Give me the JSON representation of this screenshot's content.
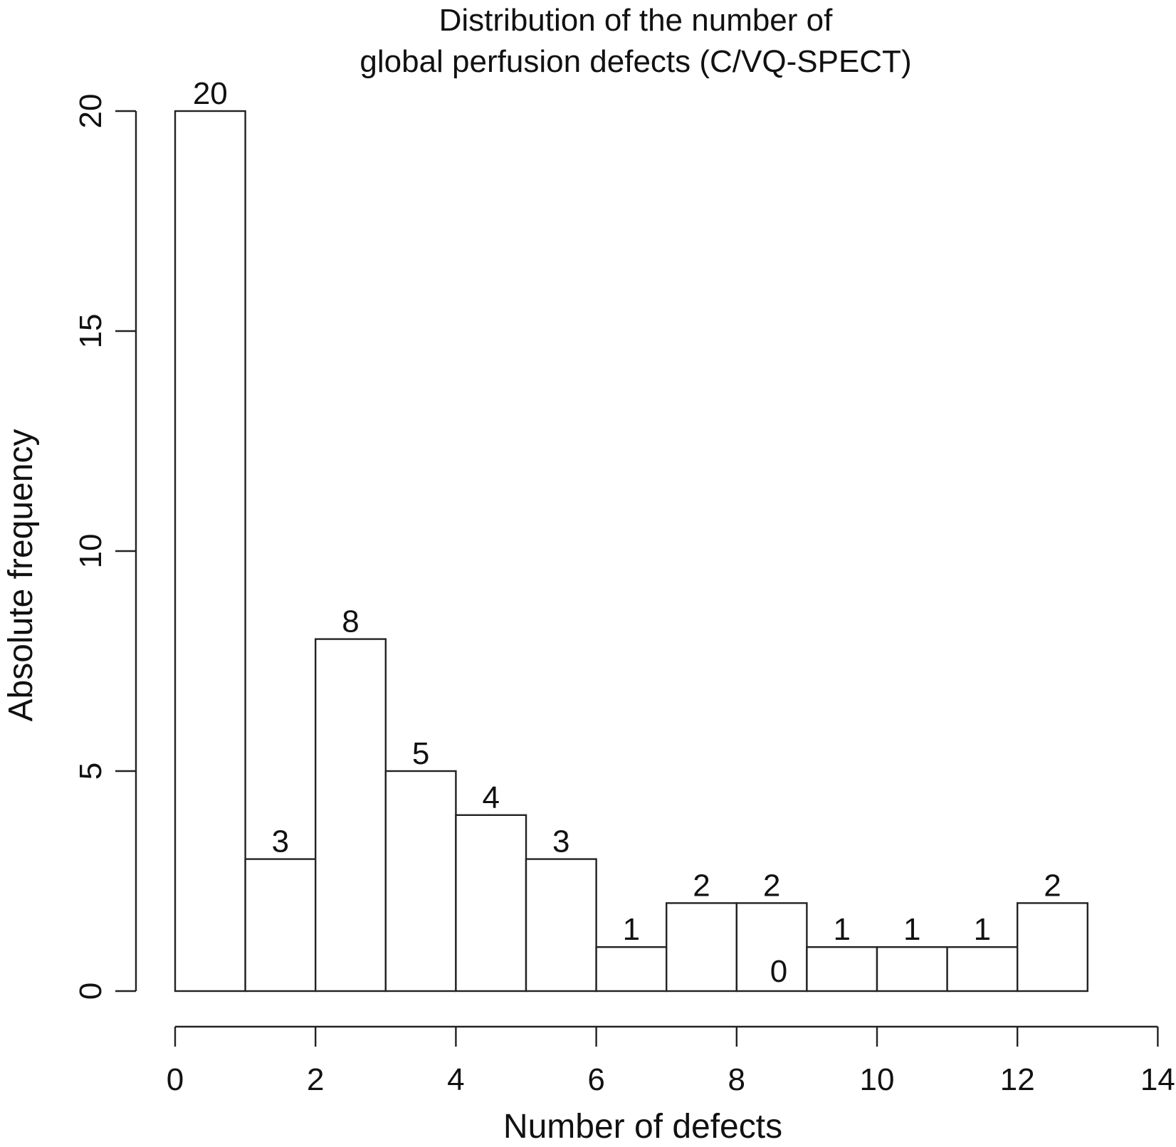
{
  "chart_data": {
    "type": "bar",
    "title": "Distribution of the number of",
    "subtitle": "global perfusion defects (C/VQ-SPECT)",
    "xlabel": "Number of defects",
    "ylabel": "Absolute frequency",
    "bins": [
      {
        "x0": 0,
        "x1": 1,
        "value": 20
      },
      {
        "x0": 1,
        "x1": 2,
        "value": 3
      },
      {
        "x0": 2,
        "x1": 3,
        "value": 8
      },
      {
        "x0": 3,
        "x1": 4,
        "value": 5
      },
      {
        "x0": 4,
        "x1": 5,
        "value": 4
      },
      {
        "x0": 5,
        "x1": 6,
        "value": 3
      },
      {
        "x0": 6,
        "x1": 7,
        "value": 1
      },
      {
        "x0": 7,
        "x1": 8,
        "value": 2
      },
      {
        "x0": 8,
        "x1": 9,
        "value": 2
      },
      {
        "x0": 9,
        "x1": 10,
        "value": 1
      },
      {
        "x0": 10,
        "x1": 11,
        "value": 1
      },
      {
        "x0": 11,
        "x1": 12,
        "value": 1
      },
      {
        "x0": 12,
        "x1": 13,
        "value": 2
      }
    ],
    "extra_labels": [
      {
        "text": "0",
        "x": 8.6,
        "y": 0.5
      }
    ],
    "xlim": [
      0,
      14
    ],
    "ylim": [
      0,
      20
    ],
    "xticks": [
      0,
      2,
      4,
      6,
      8,
      10,
      12,
      14
    ],
    "yticks": [
      0,
      5,
      10,
      15,
      20
    ],
    "grid": false,
    "legend": "none"
  }
}
